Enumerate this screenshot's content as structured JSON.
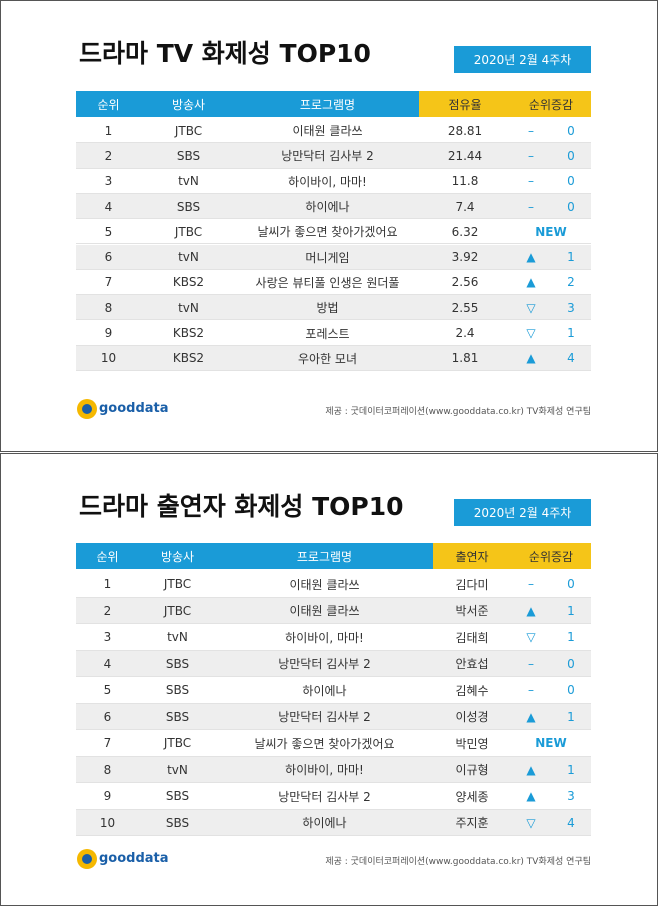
{
  "panels": [
    {
      "title": "드라마 TV 화제성 TOP10",
      "date": "2020년 2월 4주차",
      "headers": [
        "순위",
        "방송사",
        "프로그램명",
        "점유율",
        "순위증감"
      ],
      "rows": [
        [
          1,
          "JTBC",
          "이태원 클라쓰",
          28.81,
          "–",
          0
        ],
        [
          2,
          "SBS",
          "낭만닥터 김사부 2",
          21.44,
          "–",
          0
        ],
        [
          3,
          "tvN",
          "하이바이, 마마!",
          11.8,
          "–",
          0
        ],
        [
          4,
          "SBS",
          "하이에나",
          7.4,
          "–",
          0
        ],
        [
          5,
          "JTBC",
          "날씨가 좋으면 찾아가겠어요",
          6.32,
          "NEW"
        ],
        [
          6,
          "tvN",
          "머니게임",
          3.92,
          "▲",
          1
        ],
        [
          7,
          "KBS2",
          "사랑은 뷰티풀 인생은 원더풀",
          2.56,
          "▲",
          2
        ],
        [
          8,
          "tvN",
          "방법",
          2.55,
          "▽",
          3
        ],
        [
          9,
          "KBS2",
          "포레스트",
          2.4,
          "▽",
          1
        ],
        [
          10,
          "KBS2",
          "우아한 모녀",
          1.81,
          "▲",
          4
        ]
      ],
      "logo": "gooddata",
      "source": "제공 : 굿데이터코퍼레이션(www.gooddata.co.kr) TV화제성 연구팀"
    },
    {
      "title": "드라마 출연자 화제성 TOP10",
      "date": "2020년 2월 4주차",
      "headers": [
        "순위",
        "방송사",
        "프로그램명",
        "출연자",
        "순위증감"
      ],
      "rows": [
        [
          1,
          "JTBC",
          "이태원 클라쓰",
          "김다미",
          "–",
          0
        ],
        [
          2,
          "JTBC",
          "이태원 클라쓰",
          "박서준",
          "▲",
          1
        ],
        [
          3,
          "tvN",
          "하이바이, 마마!",
          "김태희",
          "▽",
          1
        ],
        [
          4,
          "SBS",
          "낭만닥터 김사부 2",
          "안효섭",
          "–",
          0
        ],
        [
          5,
          "SBS",
          "하이에나",
          "김혜수",
          "–",
          0
        ],
        [
          6,
          "SBS",
          "낭만닥터 김사부 2",
          "이성경",
          "▲",
          1
        ],
        [
          7,
          "JTBC",
          "날씨가 좋으면 찾아가겠어요",
          "박민영",
          "NEW"
        ],
        [
          8,
          "tvN",
          "하이바이, 마마!",
          "이규형",
          "▲",
          1
        ],
        [
          9,
          "SBS",
          "낭만닥터 김사부 2",
          "양세종",
          "▲",
          3
        ],
        [
          10,
          "SBS",
          "하이에나",
          "주지훈",
          "▽",
          4
        ]
      ],
      "logo": "gooddata",
      "source": "제공 : 굿데이터코퍼레이션(www.gooddata.co.kr) TV화제성 연구팀"
    }
  ]
}
